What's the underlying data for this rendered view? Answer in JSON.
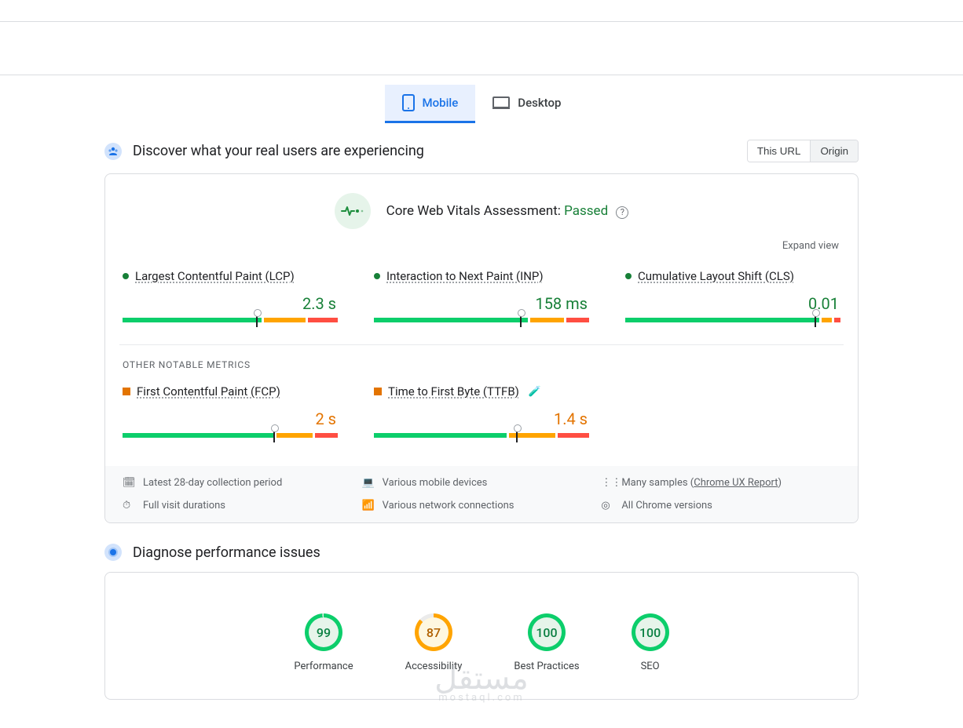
{
  "tabs": {
    "mobile": "Mobile",
    "desktop": "Desktop"
  },
  "section1": {
    "title": "Discover what your real users are experiencing",
    "seg": {
      "this_url": "This URL",
      "origin": "Origin"
    }
  },
  "cwv": {
    "label": "Core Web Vitals Assessment:",
    "status": "Passed",
    "expand": "Expand view",
    "other_label": "OTHER NOTABLE METRICS",
    "metrics": {
      "lcp": {
        "name": "Largest Contentful Paint (LCP)",
        "value": "2.3 s",
        "bar": {
          "g": 66,
          "o": 20,
          "r": 14
        },
        "marker": 62
      },
      "inp": {
        "name": "Interaction to Next Paint (INP)",
        "value": "158 ms",
        "bar": {
          "g": 73,
          "o": 16,
          "r": 11
        },
        "marker": 68
      },
      "cls": {
        "name": "Cumulative Layout Shift (CLS)",
        "value": "0.01",
        "bar": {
          "g": 92,
          "o": 5,
          "r": 3
        },
        "marker": 88
      },
      "fcp": {
        "name": "First Contentful Paint (FCP)",
        "value": "2 s",
        "bar": {
          "g": 72,
          "o": 17,
          "r": 11
        },
        "marker": 70
      },
      "ttfb": {
        "name": "Time to First Byte (TTFB)",
        "value": "1.4 s",
        "bar": {
          "g": 63,
          "o": 22,
          "r": 15
        },
        "marker": 66
      }
    },
    "footer": {
      "period": "Latest 28-day collection period",
      "devices": "Various mobile devices",
      "samples_prefix": "Many samples (",
      "samples_link": "Chrome UX Report",
      "samples_suffix": ")",
      "durations": "Full visit durations",
      "network": "Various network connections",
      "versions": "All Chrome versions"
    }
  },
  "section2": {
    "title": "Diagnose performance issues"
  },
  "gauges": {
    "perf": {
      "score": "99",
      "label": "Performance",
      "color": "#0cce6b",
      "bg": "#e6f4ea",
      "text": "#0b8043",
      "pct": 99
    },
    "a11y": {
      "score": "87",
      "label": "Accessibility",
      "color": "#ffa400",
      "bg": "#fef7e0",
      "text": "#b06000",
      "pct": 87
    },
    "bp": {
      "score": "100",
      "label": "Best Practices",
      "color": "#0cce6b",
      "bg": "#e6f4ea",
      "text": "#0b8043",
      "pct": 100
    },
    "seo": {
      "score": "100",
      "label": "SEO",
      "color": "#0cce6b",
      "bg": "#e6f4ea",
      "text": "#0b8043",
      "pct": 100
    }
  },
  "watermark": {
    "big": "مستقل",
    "small": "mostaql.com"
  },
  "colors": {
    "accent": "#1a73e8",
    "green": "#0cce6b",
    "orange": "#ffa400",
    "red": "#ff4e42"
  }
}
